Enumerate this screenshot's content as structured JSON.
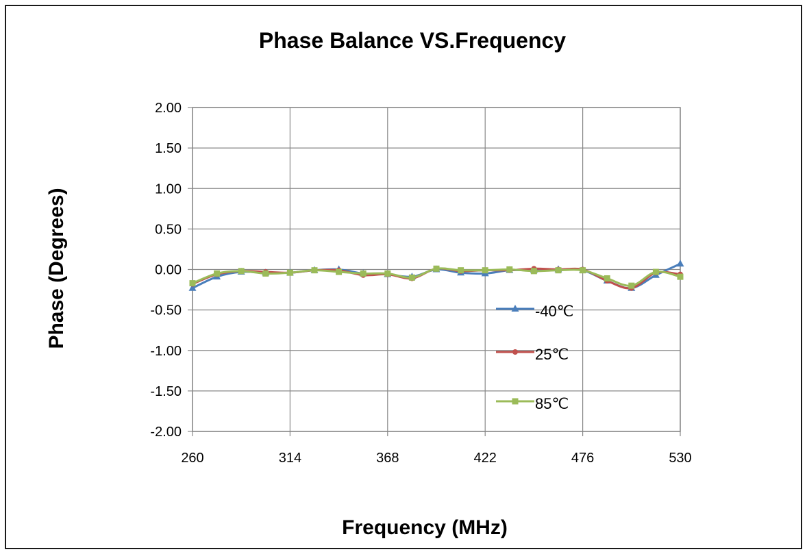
{
  "chart_data": {
    "type": "line",
    "title": "Phase Balance VS.Frequency",
    "xlabel": "Frequency (MHz)",
    "ylabel": "Phase (Degrees)",
    "xlim": [
      260,
      530
    ],
    "ylim": [
      -2.0,
      2.0
    ],
    "x_ticks": [
      "260",
      "314",
      "368",
      "422",
      "476",
      "530"
    ],
    "y_ticks": [
      "2.00",
      "1.50",
      "1.00",
      "0.50",
      "0.00",
      "-0.50",
      "-1.00",
      "-1.50",
      "-2.00"
    ],
    "grid": true,
    "legend_position": "inside-right",
    "x": [
      260,
      273.5,
      287,
      300.5,
      314,
      327.5,
      341,
      354.5,
      368,
      381.5,
      395,
      408.5,
      422,
      435.5,
      449,
      462.5,
      476,
      489.5,
      503,
      516.5,
      530
    ],
    "series": [
      {
        "name": "-40℃",
        "color": "#4a7ebb",
        "marker": "triangle",
        "values": [
          -0.23,
          -0.09,
          -0.03,
          -0.04,
          -0.04,
          -0.01,
          0.0,
          -0.05,
          -0.06,
          -0.09,
          0.0,
          -0.04,
          -0.05,
          -0.01,
          -0.01,
          0.0,
          -0.01,
          -0.14,
          -0.23,
          -0.07,
          0.07
        ]
      },
      {
        "name": "25℃",
        "color": "#c0504d",
        "marker": "circle",
        "values": [
          -0.18,
          -0.06,
          -0.02,
          -0.03,
          -0.04,
          -0.01,
          -0.01,
          -0.07,
          -0.06,
          -0.11,
          0.01,
          -0.02,
          -0.01,
          -0.01,
          0.01,
          0.0,
          0.0,
          -0.14,
          -0.23,
          -0.04,
          -0.06
        ]
      },
      {
        "name": "85℃",
        "color": "#9bbb59",
        "marker": "square",
        "values": [
          -0.17,
          -0.05,
          -0.02,
          -0.05,
          -0.04,
          -0.01,
          -0.03,
          -0.05,
          -0.05,
          -0.1,
          0.01,
          -0.01,
          -0.01,
          0.0,
          -0.02,
          -0.01,
          -0.01,
          -0.11,
          -0.2,
          -0.03,
          -0.09
        ]
      }
    ]
  }
}
